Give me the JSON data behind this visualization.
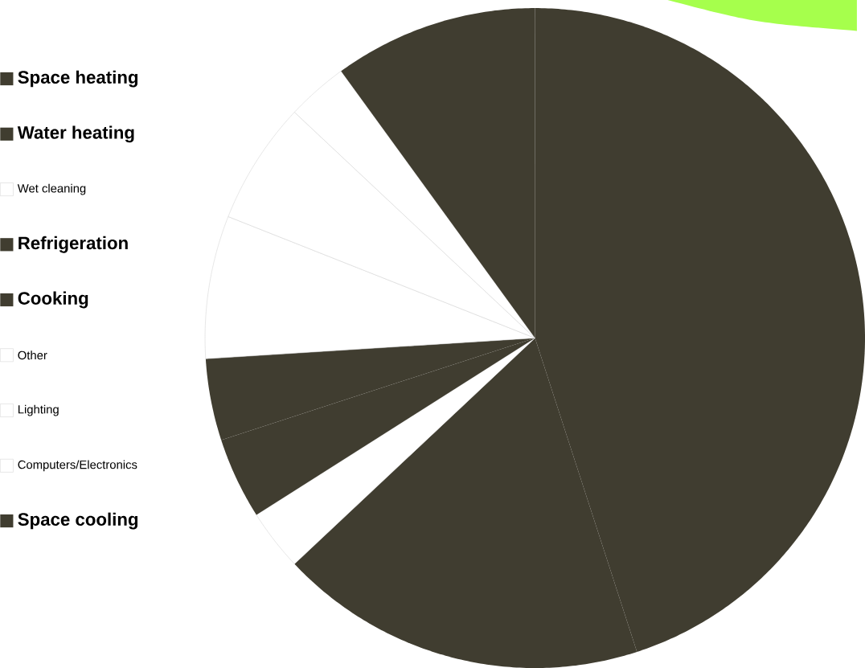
{
  "chart_data": {
    "type": "pie",
    "legend": "left",
    "categories": [
      "Space heating",
      "Water heating",
      "Wet cleaning",
      "Refrigeration",
      "Cooking",
      "Other",
      "Lighting",
      "Computers/Electronics",
      "Space cooling"
    ],
    "values": [
      45,
      18,
      3,
      4,
      4,
      7,
      6,
      3,
      10
    ],
    "colors": [
      "#403d30",
      "#403d30",
      "#ffffff",
      "#403d30",
      "#403d30",
      "#ffffff",
      "#ffffff",
      "#ffffff",
      "#403d30"
    ]
  }
}
